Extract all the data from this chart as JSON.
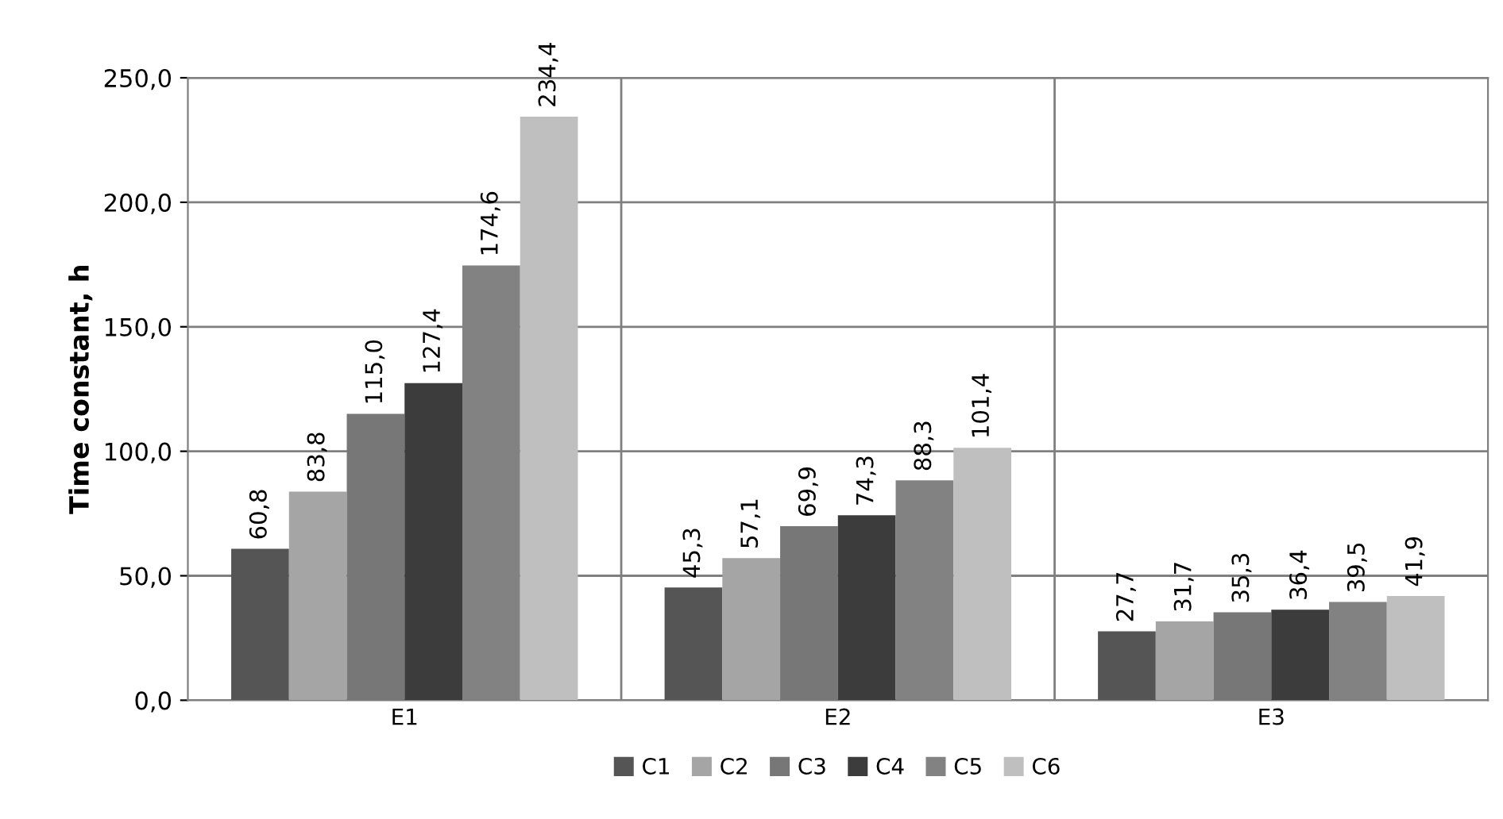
{
  "chart_data": {
    "type": "bar",
    "ylabel": "Time constant, h",
    "categories": [
      "E1",
      "E2",
      "E3"
    ],
    "series": [
      {
        "name": "C1",
        "color": "#555555",
        "values": [
          60.8,
          45.3,
          27.7
        ],
        "value_labels": [
          "60,8",
          "45,3",
          "27,7"
        ]
      },
      {
        "name": "C2",
        "color": "#a5a5a5",
        "values": [
          83.8,
          57.1,
          31.7
        ],
        "value_labels": [
          "83,8",
          "57,1",
          "31,7"
        ]
      },
      {
        "name": "C3",
        "color": "#777777",
        "values": [
          115.0,
          69.9,
          35.3
        ],
        "value_labels": [
          "115,0",
          "69,9",
          "35,3"
        ]
      },
      {
        "name": "C4",
        "color": "#3c3c3c",
        "values": [
          127.4,
          74.3,
          36.4
        ],
        "value_labels": [
          "127,4",
          "74,3",
          "36,4"
        ]
      },
      {
        "name": "C5",
        "color": "#828282",
        "values": [
          174.6,
          88.3,
          39.5
        ],
        "value_labels": [
          "174,6",
          "88,3",
          "39,5"
        ]
      },
      {
        "name": "C6",
        "color": "#bfbfbf",
        "values": [
          234.4,
          101.4,
          41.9
        ],
        "value_labels": [
          "234,4",
          "101,4",
          "41,9"
        ]
      }
    ],
    "ylim": [
      0,
      250
    ],
    "yticks": [
      {
        "value": 0,
        "label": "0,0"
      },
      {
        "value": 50,
        "label": "50,0"
      },
      {
        "value": 100,
        "label": "100,0"
      },
      {
        "value": 150,
        "label": "150,0"
      },
      {
        "value": 200,
        "label": "200,0"
      },
      {
        "value": 250,
        "label": "250,0"
      }
    ],
    "grid": true,
    "legend": "bottom"
  }
}
